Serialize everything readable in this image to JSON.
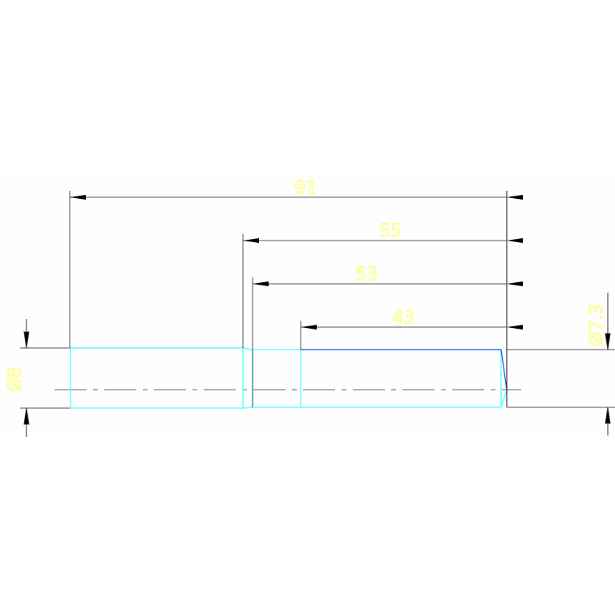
{
  "colors": {
    "background": "#ffffff",
    "dimension_line": "#555555",
    "part_outline": "#66ffff",
    "part_edge_highlight": "#3355ff",
    "dimension_text": "#ffff66",
    "centerline": "#888888"
  },
  "dimensions": {
    "overall_length": "91",
    "length_2": "55",
    "length_3": "53",
    "length_4": "43",
    "diameter_left": "Ø8",
    "diameter_right": "Ø7.3"
  }
}
